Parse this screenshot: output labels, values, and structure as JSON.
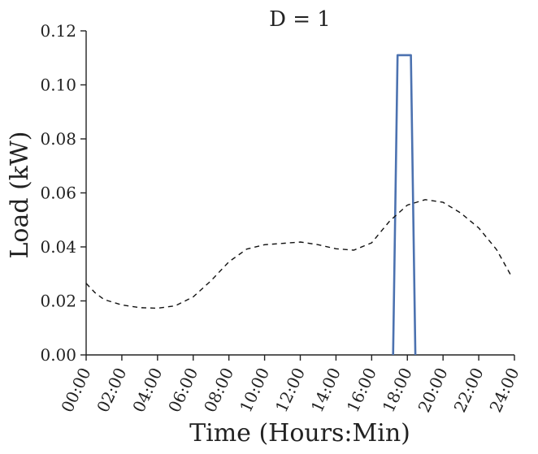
{
  "chart_data": {
    "type": "line",
    "title": "D = 1",
    "xlabel": "Time (Hours:Min)",
    "ylabel": "Load (kW)",
    "xlim": [
      0,
      24
    ],
    "ylim": [
      0,
      0.12
    ],
    "x_ticks": [
      0,
      2,
      4,
      6,
      8,
      10,
      12,
      14,
      16,
      18,
      20,
      22,
      24
    ],
    "x_tick_labels": [
      "00:00",
      "02:00",
      "04:00",
      "06:00",
      "08:00",
      "10:00",
      "12:00",
      "14:00",
      "16:00",
      "18:00",
      "20:00",
      "22:00",
      "24:00"
    ],
    "y_ticks": [
      0,
      0.02,
      0.04,
      0.06,
      0.08,
      0.1,
      0.12
    ],
    "y_tick_labels": [
      "0.00",
      "0.02",
      "0.04",
      "0.06",
      "0.08",
      "0.10",
      "0.12"
    ],
    "grid": false,
    "series": [
      {
        "style": "solid",
        "color": "#4c72b0",
        "x": [
          17.2,
          17.45,
          18.2,
          18.45
        ],
        "y": [
          0,
          0.111,
          0.111,
          0
        ]
      },
      {
        "style": "dashed",
        "color": "#111111",
        "x": [
          0,
          0.5,
          1,
          2,
          3,
          4,
          5,
          6,
          7,
          8,
          9,
          10,
          11,
          12,
          13,
          14,
          15,
          16,
          17,
          18,
          19,
          20,
          21,
          22,
          23,
          23.8
        ],
        "y": [
          0.0265,
          0.023,
          0.0205,
          0.0185,
          0.0175,
          0.0173,
          0.0182,
          0.0215,
          0.0275,
          0.0345,
          0.0392,
          0.0408,
          0.0413,
          0.0418,
          0.0408,
          0.0393,
          0.0388,
          0.0415,
          0.0495,
          0.0555,
          0.0575,
          0.0565,
          0.0525,
          0.047,
          0.039,
          0.0295
        ]
      }
    ]
  }
}
